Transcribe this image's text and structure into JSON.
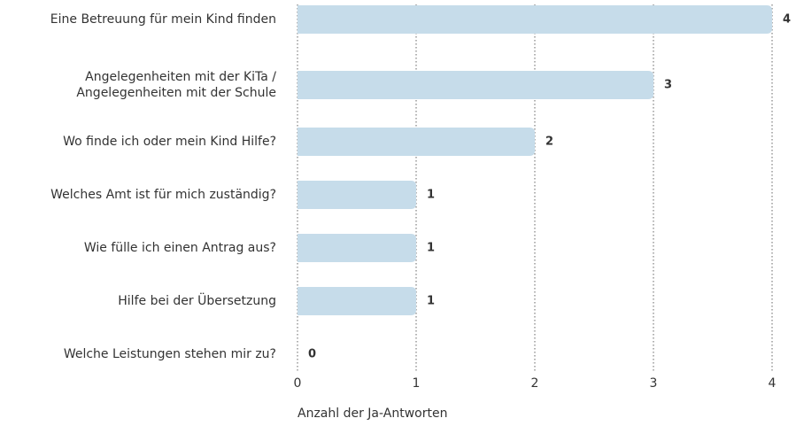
{
  "chart_data": {
    "type": "bar",
    "orientation": "horizontal",
    "categories": [
      "Eine Betreuung für mein Kind finden",
      "Angelegenheiten mit der KiTa /\nAngelegenheiten mit der Schule",
      "Wo finde ich oder mein Kind Hilfe?",
      "Welches Amt ist für mich zuständig?",
      "Wie fülle ich einen Antrag aus?",
      "Hilfe bei der Übersetzung",
      "Welche Leistungen stehen mir zu?"
    ],
    "values": [
      4,
      3,
      2,
      1,
      1,
      1,
      0
    ],
    "color": "#c6dcea",
    "xlim": [
      0,
      4
    ],
    "xticks": [
      0,
      1,
      2,
      3,
      4
    ],
    "grid": true,
    "xlabel": "Anzahl der Ja-Antworten"
  }
}
